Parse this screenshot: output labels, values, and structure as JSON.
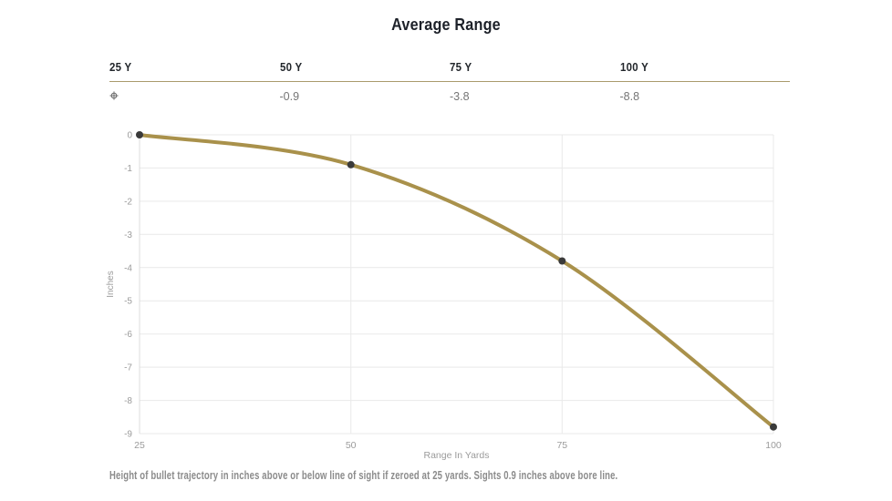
{
  "page": {
    "title": "Average Range",
    "footnote": "Height of bullet trajectory in inches above or below line of sight if zeroed at 25 yards. Sights 0.9 inches above bore line."
  },
  "summary_table": {
    "columns": [
      "25 Y",
      "50 Y",
      "75 Y",
      "100 Y"
    ],
    "zero_icon": "zero-reticle",
    "values": [
      "-0.9",
      "-3.8",
      "-8.8"
    ]
  },
  "chart_data": {
    "type": "line",
    "title": "Average Range",
    "x": [
      25,
      50,
      75,
      100
    ],
    "series": [
      {
        "name": "Bullet trajectory height",
        "values": [
          0,
          -0.9,
          -3.8,
          -8.8
        ]
      }
    ],
    "xlabel": "Range In Yards",
    "ylabel": "Inches",
    "xlim": [
      25,
      100
    ],
    "ylim": [
      -9,
      0
    ],
    "xticks": [
      25,
      50,
      75,
      100
    ],
    "yticks": [
      0,
      -1,
      -2,
      -3,
      -4,
      -5,
      -6,
      -7,
      -8,
      -9
    ],
    "grid": true,
    "legend": false,
    "curve": "smooth",
    "line_color": "#A9914B",
    "marker_color": "#3A3A3A"
  },
  "colors": {
    "title_text": "#1D2129",
    "header_text": "#23272C",
    "value_text": "#757575",
    "table_divider": "#AA9A6C",
    "gridline": "#E9E9E9",
    "axis_line": "#DCDCDC",
    "tick_label": "#9B9B9B",
    "footnote_text": "#8B8B8B"
  }
}
